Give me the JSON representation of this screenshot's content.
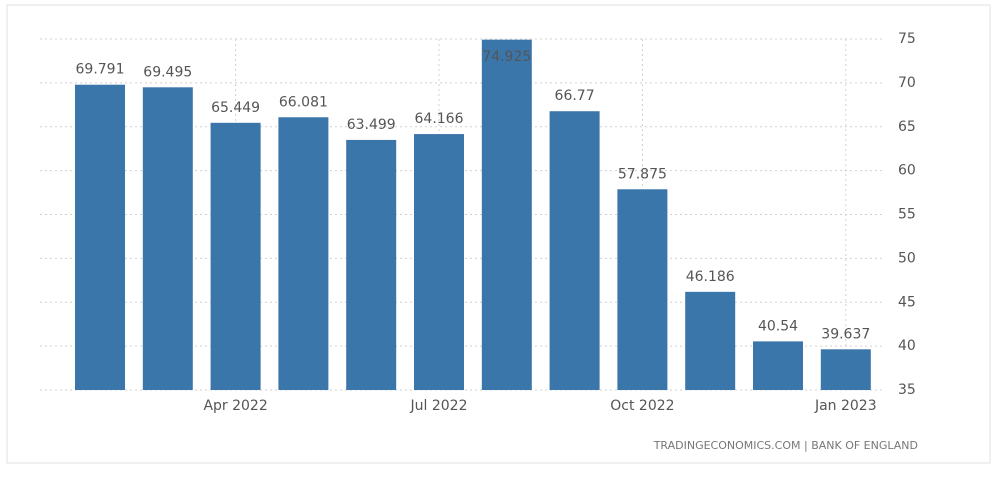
{
  "chart_data": {
    "type": "bar",
    "categories": [
      null,
      null,
      "Apr 2022",
      null,
      null,
      "Jul 2022",
      null,
      null,
      "Oct 2022",
      null,
      null,
      "Jan 2023"
    ],
    "values": [
      69.791,
      69.495,
      65.449,
      66.081,
      63.499,
      64.166,
      74.925,
      66.77,
      57.875,
      46.186,
      40.54,
      39.637
    ],
    "color": "#3b76ab",
    "ylim": [
      35,
      75
    ],
    "yticks": [
      35,
      40,
      45,
      50,
      55,
      60,
      65,
      70,
      75
    ],
    "grid": true,
    "source": "TRADINGECONOMICS.COM | BANK OF ENGLAND"
  }
}
